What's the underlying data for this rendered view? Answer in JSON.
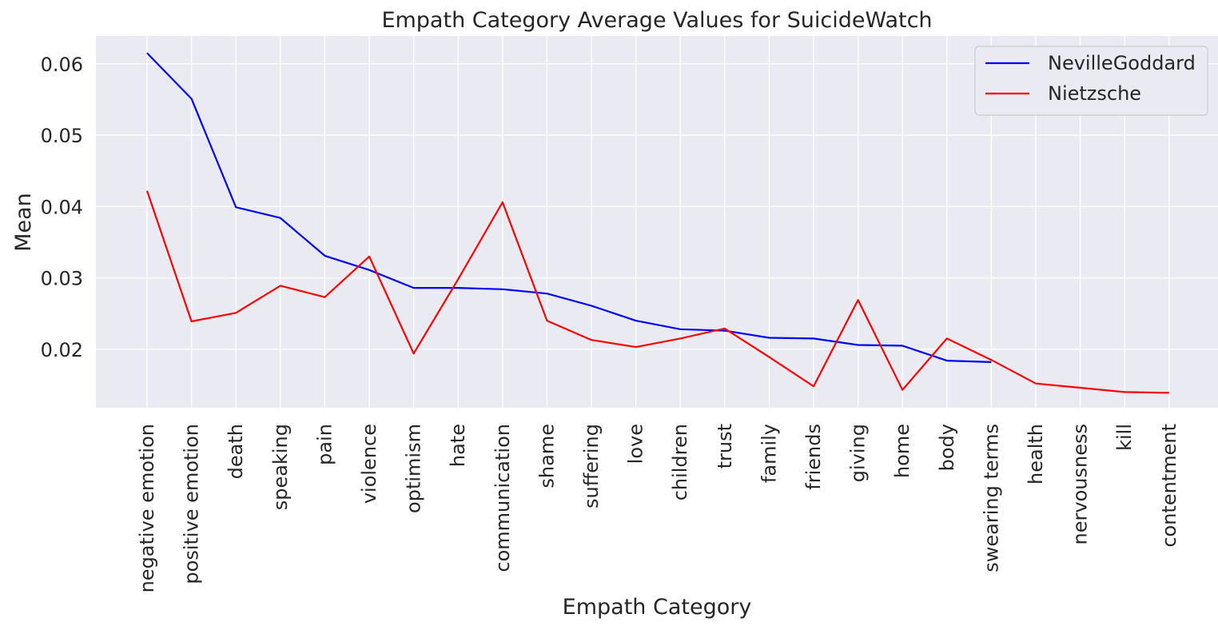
{
  "chart_data": {
    "type": "line",
    "title": "Empath Category Average Values for SuicideWatch",
    "xlabel": "Empath Category",
    "ylabel": "Mean",
    "categories": [
      "negative emotion",
      "positive emotion",
      "death",
      "speaking",
      "pain",
      "violence",
      "optimism",
      "hate",
      "communication",
      "shame",
      "suffering",
      "love",
      "children",
      "trust",
      "family",
      "friends",
      "giving",
      "home",
      "body",
      "swearing terms",
      "health",
      "nervousness",
      "kill",
      "contentment"
    ],
    "yticks": [
      0.02,
      0.03,
      0.04,
      0.05,
      0.06
    ],
    "ytick_labels": [
      "0.02",
      "0.03",
      "0.04",
      "0.05",
      "0.06"
    ],
    "ylim": [
      0.0118,
      0.0639
    ],
    "grid": true,
    "legend_position": "top-right",
    "background_color": "#eaeaf2",
    "series": [
      {
        "name": "NevilleGoddard",
        "color": "#0000ff",
        "values": [
          0.0615,
          0.0551,
          0.0399,
          0.0384,
          0.0331,
          0.0311,
          0.0286,
          0.0286,
          0.0284,
          0.0278,
          0.0261,
          0.024,
          0.0228,
          0.0226,
          0.0216,
          0.0215,
          0.0206,
          0.0205,
          0.0184,
          0.0182,
          null,
          null,
          null,
          null
        ]
      },
      {
        "name": "Nietzsche",
        "color": "#ff0000",
        "values": [
          0.0422,
          0.0239,
          0.0251,
          0.0289,
          0.0273,
          0.033,
          0.0194,
          0.0298,
          0.0406,
          0.024,
          0.0213,
          0.0203,
          0.0215,
          0.0229,
          0.0189,
          0.0148,
          0.0269,
          0.0143,
          0.0215,
          0.0185,
          0.0152,
          0.0146,
          0.014,
          0.0139
        ]
      }
    ]
  }
}
